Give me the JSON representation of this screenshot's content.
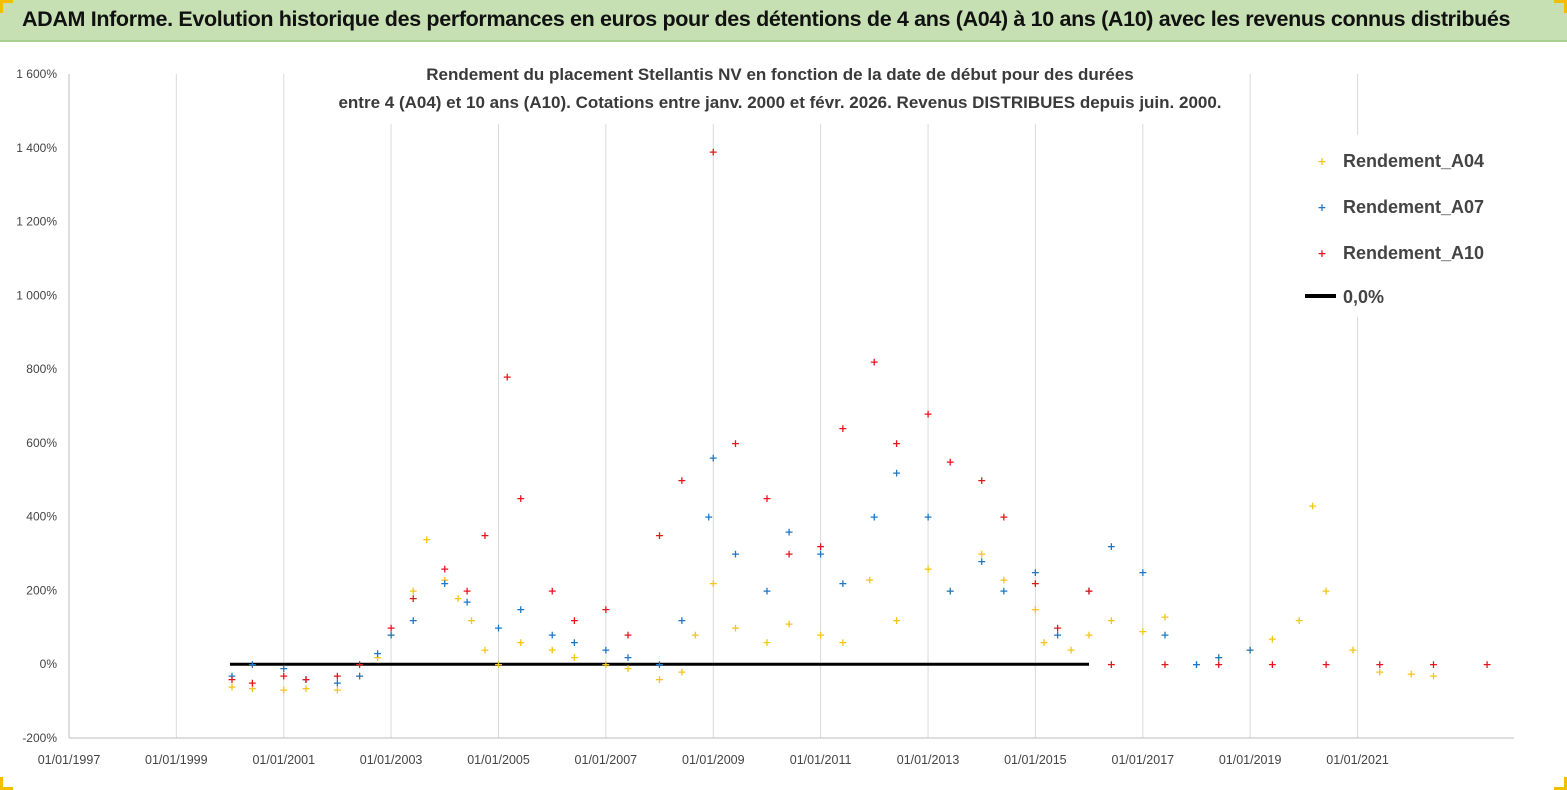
{
  "header": {
    "banner_title": "ADAM Informe. Evolution historique des performances en euros pour des détentions de 4 ans (A04) à 10 ans (A10) avec les revenus connus distribués"
  },
  "chart_data": {
    "type": "scatter",
    "title_lines": [
      "Rendement du placement Stellantis NV en fonction de la date de début pour des durées",
      "entre 4 (A04) et 10 ans (A10). Cotations entre janv. 2000 et févr. 2026. Revenus DISTRIBUES depuis juin. 2000."
    ],
    "xlabel": "",
    "ylabel": "",
    "x_range": [
      "1997-01-01",
      "2023-12-01"
    ],
    "ylim": [
      -200,
      1600
    ],
    "y_ticks": [
      -200,
      0,
      200,
      400,
      600,
      800,
      1000,
      1200,
      1400,
      1600
    ],
    "y_tick_labels": [
      "-200%",
      "0%",
      "200%",
      "400%",
      "600%",
      "800%",
      "1 000%",
      "1 200%",
      "1 400%",
      "1 600%"
    ],
    "x_ticks": [
      "1997-01-01",
      "1999-01-01",
      "2001-01-01",
      "2003-01-01",
      "2005-01-01",
      "2007-01-01",
      "2009-01-01",
      "2011-01-01",
      "2013-01-01",
      "2015-01-01",
      "2017-01-01",
      "2019-01-01",
      "2021-01-01"
    ],
    "x_tick_labels": [
      "01/01/1997",
      "01/01/1999",
      "01/01/2001",
      "01/01/2003",
      "01/01/2005",
      "01/01/2007",
      "01/01/2009",
      "01/01/2011",
      "01/01/2013",
      "01/01/2015",
      "01/01/2017",
      "01/01/2019",
      "01/01/2021"
    ],
    "grid": {
      "vertical": true,
      "horizontal": false
    },
    "legend_position": "top-right",
    "series": [
      {
        "name": "Rendement_A04",
        "color": "#f5c518",
        "marker": "+",
        "points": [
          [
            "2000-01-15",
            -60
          ],
          [
            "2000-06-01",
            -65
          ],
          [
            "2001-01-01",
            -68
          ],
          [
            "2001-06-01",
            -65
          ],
          [
            "2002-01-01",
            -68
          ],
          [
            "2002-06-01",
            -30
          ],
          [
            "2002-10-01",
            20
          ],
          [
            "2003-01-01",
            80
          ],
          [
            "2003-06-01",
            200
          ],
          [
            "2003-09-01",
            340
          ],
          [
            "2004-01-01",
            230
          ],
          [
            "2004-04-01",
            180
          ],
          [
            "2004-07-01",
            120
          ],
          [
            "2004-10-01",
            40
          ],
          [
            "2005-01-01",
            0
          ],
          [
            "2005-06-01",
            60
          ],
          [
            "2006-01-01",
            40
          ],
          [
            "2006-06-01",
            20
          ],
          [
            "2007-01-01",
            0
          ],
          [
            "2007-06-01",
            -10
          ],
          [
            "2008-01-01",
            -40
          ],
          [
            "2008-06-01",
            -20
          ],
          [
            "2008-09-01",
            80
          ],
          [
            "2009-01-01",
            220
          ],
          [
            "2009-06-01",
            100
          ],
          [
            "2010-01-01",
            60
          ],
          [
            "2010-06-01",
            110
          ],
          [
            "2011-01-01",
            80
          ],
          [
            "2011-06-01",
            60
          ],
          [
            "2011-12-01",
            230
          ],
          [
            "2012-06-01",
            120
          ],
          [
            "2013-01-01",
            260
          ],
          [
            "2013-06-01",
            200
          ],
          [
            "2014-01-01",
            300
          ],
          [
            "2014-06-01",
            230
          ],
          [
            "2015-01-01",
            150
          ],
          [
            "2015-03-01",
            60
          ],
          [
            "2015-09-01",
            40
          ],
          [
            "2016-01-01",
            80
          ],
          [
            "2016-06-01",
            120
          ],
          [
            "2017-01-01",
            90
          ],
          [
            "2017-06-01",
            130
          ],
          [
            "2018-01-01",
            0
          ],
          [
            "2018-06-01",
            20
          ],
          [
            "2019-01-01",
            40
          ],
          [
            "2019-06-01",
            70
          ],
          [
            "2019-12-01",
            120
          ],
          [
            "2020-03-01",
            430
          ],
          [
            "2020-06-01",
            200
          ],
          [
            "2020-12-01",
            40
          ],
          [
            "2021-06-01",
            -20
          ],
          [
            "2022-01-01",
            -25
          ],
          [
            "2022-06-01",
            -30
          ]
        ]
      },
      {
        "name": "Rendement_A07",
        "color": "#1f77c4",
        "marker": "+",
        "points": [
          [
            "2000-01-15",
            -30
          ],
          [
            "2000-06-01",
            0
          ],
          [
            "2001-01-01",
            -10
          ],
          [
            "2001-06-01",
            -40
          ],
          [
            "2002-01-01",
            -50
          ],
          [
            "2002-06-01",
            -30
          ],
          [
            "2002-10-01",
            30
          ],
          [
            "2003-01-01",
            80
          ],
          [
            "2003-06-01",
            120
          ],
          [
            "2004-01-01",
            220
          ],
          [
            "2004-06-01",
            170
          ],
          [
            "2005-01-01",
            100
          ],
          [
            "2005-06-01",
            150
          ],
          [
            "2006-01-01",
            80
          ],
          [
            "2006-06-01",
            60
          ],
          [
            "2007-01-01",
            40
          ],
          [
            "2007-06-01",
            20
          ],
          [
            "2008-01-01",
            0
          ],
          [
            "2008-06-01",
            120
          ],
          [
            "2008-12-01",
            400
          ],
          [
            "2009-01-01",
            560
          ],
          [
            "2009-06-01",
            300
          ],
          [
            "2010-01-01",
            200
          ],
          [
            "2010-06-01",
            360
          ],
          [
            "2011-01-01",
            300
          ],
          [
            "2011-06-01",
            220
          ],
          [
            "2012-01-01",
            400
          ],
          [
            "2012-06-01",
            520
          ],
          [
            "2013-01-01",
            400
          ],
          [
            "2013-06-01",
            200
          ],
          [
            "2014-01-01",
            280
          ],
          [
            "2014-06-01",
            200
          ],
          [
            "2015-01-01",
            250
          ],
          [
            "2015-06-01",
            80
          ],
          [
            "2016-01-01",
            200
          ],
          [
            "2016-06-01",
            320
          ],
          [
            "2017-01-01",
            250
          ],
          [
            "2017-06-01",
            80
          ],
          [
            "2018-01-01",
            0
          ],
          [
            "2018-06-01",
            20
          ],
          [
            "2019-01-01",
            40
          ]
        ]
      },
      {
        "name": "Rendement_A10",
        "color": "#e8141c",
        "marker": "+",
        "points": [
          [
            "2000-01-15",
            -40
          ],
          [
            "2000-06-01",
            -50
          ],
          [
            "2001-01-01",
            -30
          ],
          [
            "2001-06-01",
            -40
          ],
          [
            "2002-01-01",
            -30
          ],
          [
            "2002-06-01",
            0
          ],
          [
            "2003-01-01",
            100
          ],
          [
            "2003-06-01",
            180
          ],
          [
            "2004-01-01",
            260
          ],
          [
            "2004-06-01",
            200
          ],
          [
            "2004-10-01",
            350
          ],
          [
            "2005-03-01",
            780
          ],
          [
            "2005-06-01",
            450
          ],
          [
            "2006-01-01",
            200
          ],
          [
            "2006-06-01",
            120
          ],
          [
            "2007-01-01",
            150
          ],
          [
            "2007-06-01",
            80
          ],
          [
            "2008-01-01",
            350
          ],
          [
            "2008-06-01",
            500
          ],
          [
            "2009-01-01",
            1390
          ],
          [
            "2009-06-01",
            600
          ],
          [
            "2010-01-01",
            450
          ],
          [
            "2010-06-01",
            300
          ],
          [
            "2011-01-01",
            320
          ],
          [
            "2011-06-01",
            640
          ],
          [
            "2012-01-01",
            820
          ],
          [
            "2012-06-01",
            600
          ],
          [
            "2013-01-01",
            680
          ],
          [
            "2013-06-01",
            550
          ],
          [
            "2014-01-01",
            500
          ],
          [
            "2014-06-01",
            400
          ],
          [
            "2015-01-01",
            220
          ],
          [
            "2015-06-01",
            100
          ],
          [
            "2016-01-01",
            200
          ],
          [
            "2016-06-01",
            0
          ],
          [
            "2017-06-01",
            0
          ],
          [
            "2018-06-01",
            0
          ],
          [
            "2019-06-01",
            0
          ],
          [
            "2020-06-01",
            0
          ],
          [
            "2021-06-01",
            0
          ],
          [
            "2022-06-01",
            0
          ],
          [
            "2023-06-01",
            0
          ]
        ]
      }
    ],
    "reference_line": {
      "name": "0,0%",
      "value": 0,
      "x_start": "2000-01-01",
      "x_end": "2016-01-01",
      "color": "#000000"
    }
  }
}
